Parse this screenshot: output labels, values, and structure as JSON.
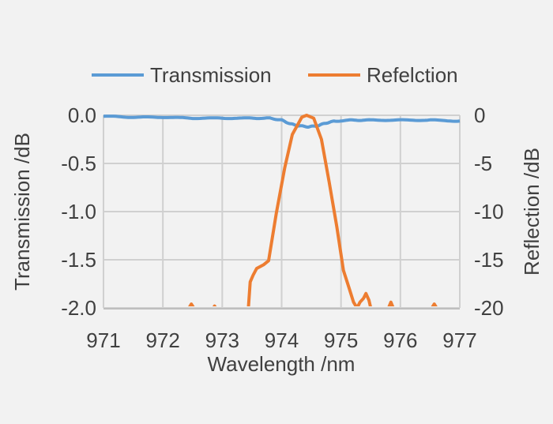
{
  "chart_data": {
    "type": "line",
    "title": "",
    "xlabel": "Wavelength /nm",
    "ylabel_left": "Transmission /dB",
    "ylabel_right": "Reflection /dB",
    "xlim": [
      971,
      977
    ],
    "ylim_left": [
      -2.0,
      0.0
    ],
    "ylim_right": [
      -20,
      0
    ],
    "xticks": [
      "971",
      "972",
      "973",
      "974",
      "975",
      "976",
      "977"
    ],
    "yticks_left": [
      "0.0",
      "-0.5",
      "-1.0",
      "-1.5",
      "-2.0"
    ],
    "yticks_right": [
      "0",
      "-5",
      "-10",
      "-15",
      "-20"
    ],
    "grid": true,
    "legend_position": "top",
    "series": [
      {
        "name": "Transmission",
        "axis": "left",
        "color": "#5b9bd5",
        "x": [
          971.0,
          971.5,
          972.0,
          972.5,
          973.0,
          973.5,
          973.8,
          974.0,
          974.15,
          974.3,
          974.45,
          974.6,
          974.75,
          974.9,
          975.2,
          975.5,
          976.0,
          976.5,
          977.0
        ],
        "y": [
          -0.01,
          -0.02,
          -0.02,
          -0.03,
          -0.03,
          -0.03,
          -0.03,
          -0.05,
          -0.09,
          -0.11,
          -0.12,
          -0.11,
          -0.08,
          -0.06,
          -0.05,
          -0.05,
          -0.05,
          -0.05,
          -0.06
        ]
      },
      {
        "name": "Refelction",
        "axis": "right",
        "color": "#ed7d31",
        "x": [
          971.0,
          972.44,
          972.48,
          972.52,
          972.85,
          972.87,
          972.89,
          973.44,
          973.47,
          973.52,
          973.58,
          973.7,
          973.78,
          973.91,
          974.05,
          974.18,
          974.34,
          974.42,
          974.54,
          974.67,
          974.8,
          974.93,
          975.04,
          975.13,
          975.21,
          975.27,
          975.32,
          975.38,
          975.42,
          975.47,
          975.5,
          975.8,
          975.84,
          975.88,
          976.53,
          976.57,
          976.61,
          977.0
        ],
        "y": [
          -20,
          -20,
          -19.6,
          -20,
          -20,
          -19.8,
          -20,
          -20,
          -17.3,
          -16.6,
          -15.9,
          -15.5,
          -15.1,
          -10.2,
          -5.5,
          -2.0,
          -0.2,
          0.0,
          -0.3,
          -2.5,
          -6.9,
          -11.6,
          -16.1,
          -17.8,
          -19.4,
          -20,
          -19.4,
          -19.0,
          -18.5,
          -19.2,
          -20,
          -20,
          -19.4,
          -20,
          -20,
          -19.6,
          -20,
          -20
        ]
      }
    ]
  }
}
